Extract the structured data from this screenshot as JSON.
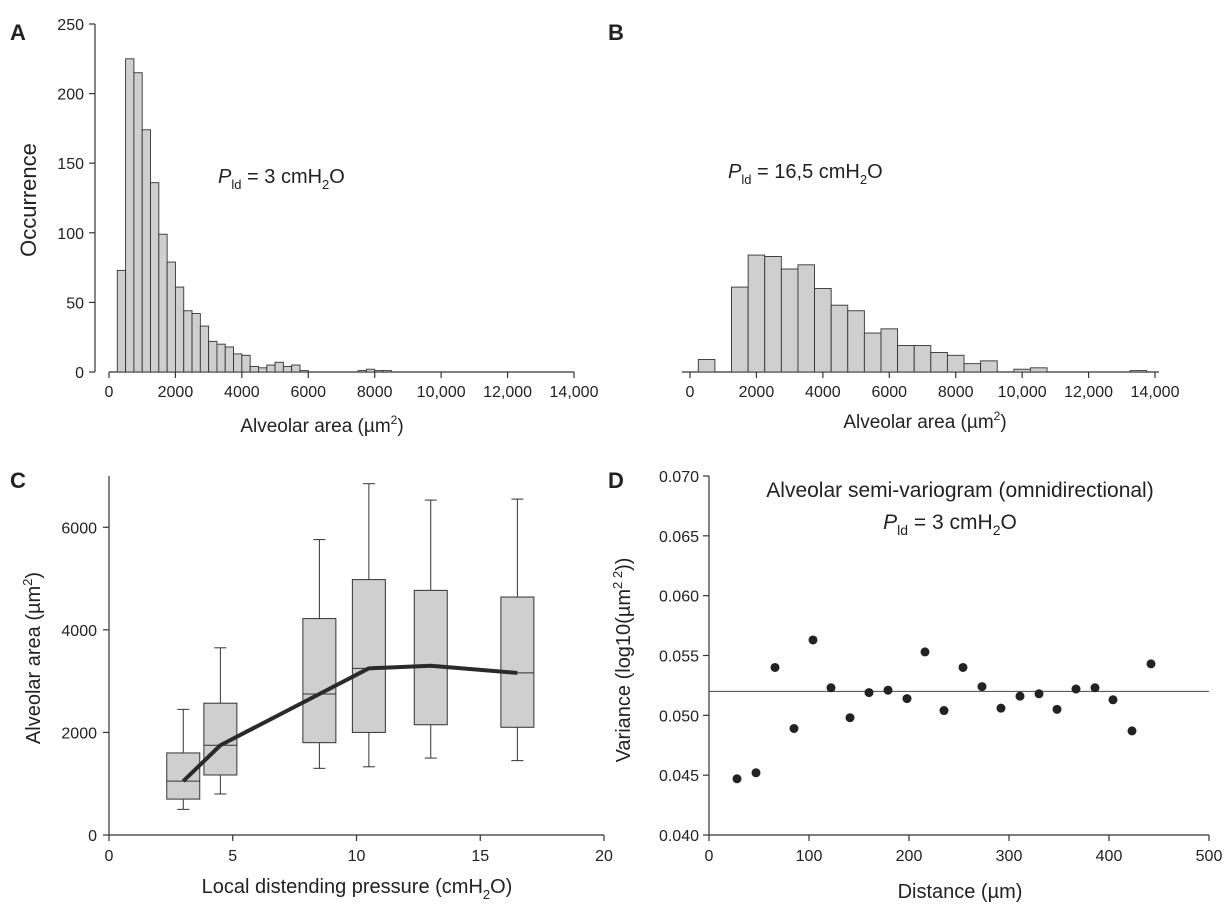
{
  "panels": {
    "A": {
      "letter": "A",
      "annotation_sym": "P",
      "annotation_sub": "ld",
      "annotation_text": " = 3 cmH",
      "annotation_sub2": "2",
      "annotation_tail": "O"
    },
    "B": {
      "letter": "B",
      "annotation_sym": "P",
      "annotation_sub": "ld",
      "annotation_text": " = 16,5 cmH",
      "annotation_sub2": "2",
      "annotation_tail": "O"
    },
    "C": {
      "letter": "C"
    },
    "D": {
      "letter": "D",
      "title_line1": "Alveolar semi-variogram (omnidirectional)",
      "title_sym": "P",
      "title_sub": "ld",
      "title_text": " = 3 cmH",
      "title_sub2": "2",
      "title_tail": "O"
    }
  },
  "chart_data": [
    {
      "panel": "A",
      "type": "bar",
      "ylabel": "Occurrence",
      "xlabel": "Alveolar area (µm",
      "xlabel_sup": "2",
      "xlabel_tail": ")",
      "bin_width": 250,
      "bin_start": 250,
      "values": [
        73,
        225,
        215,
        174,
        136,
        99,
        79,
        61,
        44,
        42,
        33,
        22,
        20,
        18,
        13,
        12,
        4,
        3,
        5,
        7,
        4,
        5,
        1,
        0,
        0,
        0,
        0,
        0,
        0,
        1,
        2,
        1,
        1
      ],
      "xlim": [
        0,
        14000
      ],
      "ylim": [
        0,
        250
      ],
      "xticks": [
        0,
        2000,
        4000,
        6000,
        8000,
        10000,
        12000,
        14000
      ],
      "xtick_labels": [
        "0",
        "2000",
        "4000",
        "6000",
        "8000",
        "10,000",
        "12,000",
        "14,000"
      ],
      "yticks": [
        0,
        50,
        100,
        150,
        200,
        250
      ],
      "ytick_labels": [
        "0",
        "50",
        "100",
        "150",
        "200",
        "250"
      ]
    },
    {
      "panel": "B",
      "type": "bar",
      "xlabel": "Alveolar area (µm",
      "xlabel_sup": "2",
      "xlabel_tail": ")",
      "bin_width": 500,
      "bars": [
        {
          "x0": 250,
          "value": 9
        },
        {
          "x0": 1250,
          "value": 61
        },
        {
          "x0": 1750,
          "value": 84
        },
        {
          "x0": 2250,
          "value": 83
        },
        {
          "x0": 2750,
          "value": 74
        },
        {
          "x0": 3250,
          "value": 77
        },
        {
          "x0": 3750,
          "value": 60
        },
        {
          "x0": 4250,
          "value": 48
        },
        {
          "x0": 4750,
          "value": 44
        },
        {
          "x0": 5250,
          "value": 28
        },
        {
          "x0": 5750,
          "value": 31
        },
        {
          "x0": 6250,
          "value": 19
        },
        {
          "x0": 6750,
          "value": 19
        },
        {
          "x0": 7250,
          "value": 14
        },
        {
          "x0": 7750,
          "value": 12
        },
        {
          "x0": 8250,
          "value": 6
        },
        {
          "x0": 8750,
          "value": 8
        },
        {
          "x0": 9750,
          "value": 2
        },
        {
          "x0": 10250,
          "value": 3
        },
        {
          "x0": 13250,
          "value": 1
        }
      ],
      "xlim": [
        0,
        14000
      ],
      "ylim": [
        0,
        250
      ],
      "xticks": [
        0,
        2000,
        4000,
        6000,
        8000,
        10000,
        12000,
        14000
      ],
      "xtick_labels": [
        "0",
        "2000",
        "4000",
        "6000",
        "8000",
        "10,000",
        "12,000",
        "14,000"
      ]
    },
    {
      "panel": "C",
      "type": "box",
      "ylabel": "Alveolar area (µm",
      "ylabel_sup": "2",
      "ylabel_tail": ")",
      "xlabel": "Local distending pressure (cmH",
      "xlabel_sub": "2",
      "xlabel_tail": "O)",
      "boxes": [
        {
          "x": 3.0,
          "whisker_low": 500,
          "q1": 700,
          "median": 1050,
          "q3": 1600,
          "whisker_high": 2450
        },
        {
          "x": 4.5,
          "whisker_low": 800,
          "q1": 1170,
          "median": 1750,
          "q3": 2570,
          "whisker_high": 3650
        },
        {
          "x": 8.5,
          "whisker_low": 1300,
          "q1": 1800,
          "median": 2750,
          "q3": 4220,
          "whisker_high": 5760
        },
        {
          "x": 10.5,
          "whisker_low": 1330,
          "q1": 2000,
          "median": 3250,
          "q3": 4980,
          "whisker_high": 6850
        },
        {
          "x": 13.0,
          "whisker_low": 1500,
          "q1": 2150,
          "median": 3300,
          "q3": 4770,
          "whisker_high": 6530
        },
        {
          "x": 16.5,
          "whisker_low": 1450,
          "q1": 2100,
          "median": 3160,
          "q3": 4640,
          "whisker_high": 6550
        }
      ],
      "trend_line": {
        "x": [
          3.0,
          4.5,
          8.5,
          10.5,
          13.0,
          16.5
        ],
        "y": [
          1050,
          1750,
          2750,
          3250,
          3300,
          3160
        ]
      },
      "xlim": [
        0,
        20
      ],
      "ylim": [
        0,
        7000
      ],
      "xticks": [
        0,
        5,
        10,
        15,
        20
      ],
      "xtick_labels": [
        "0",
        "5",
        "10",
        "15",
        "20"
      ],
      "yticks": [
        0,
        2000,
        4000,
        6000
      ],
      "ytick_labels": [
        "0",
        "2000",
        "4000",
        "6000"
      ]
    },
    {
      "panel": "D",
      "type": "scatter",
      "ylabel": "Variance (log10(µm",
      "ylabel_sup": "2 2",
      "ylabel_tail": "))",
      "xlabel": "Distance (µm)",
      "x": [
        28,
        47,
        66,
        85,
        104,
        122,
        141,
        160,
        179,
        198,
        216,
        235,
        254,
        273,
        292,
        311,
        330,
        348,
        367,
        386,
        404,
        423,
        442
      ],
      "y": [
        0.0447,
        0.0452,
        0.054,
        0.0489,
        0.0563,
        0.0523,
        0.0498,
        0.0519,
        0.0521,
        0.0514,
        0.0553,
        0.0504,
        0.054,
        0.0524,
        0.0506,
        0.0516,
        0.0518,
        0.0505,
        0.0522,
        0.0523,
        0.0513,
        0.0487,
        0.0543
      ],
      "reference_line_y": 0.052,
      "xlim": [
        0,
        500
      ],
      "ylim": [
        0.04,
        0.07
      ],
      "xticks": [
        0,
        100,
        200,
        300,
        400,
        500
      ],
      "xtick_labels": [
        "0",
        "100",
        "200",
        "300",
        "400",
        "500"
      ],
      "yticks": [
        0.04,
        0.045,
        0.05,
        0.055,
        0.06,
        0.065,
        0.07
      ],
      "ytick_labels": [
        "0.040",
        "0.045",
        "0.050",
        "0.055",
        "0.060",
        "0.065",
        "0.070"
      ]
    }
  ]
}
